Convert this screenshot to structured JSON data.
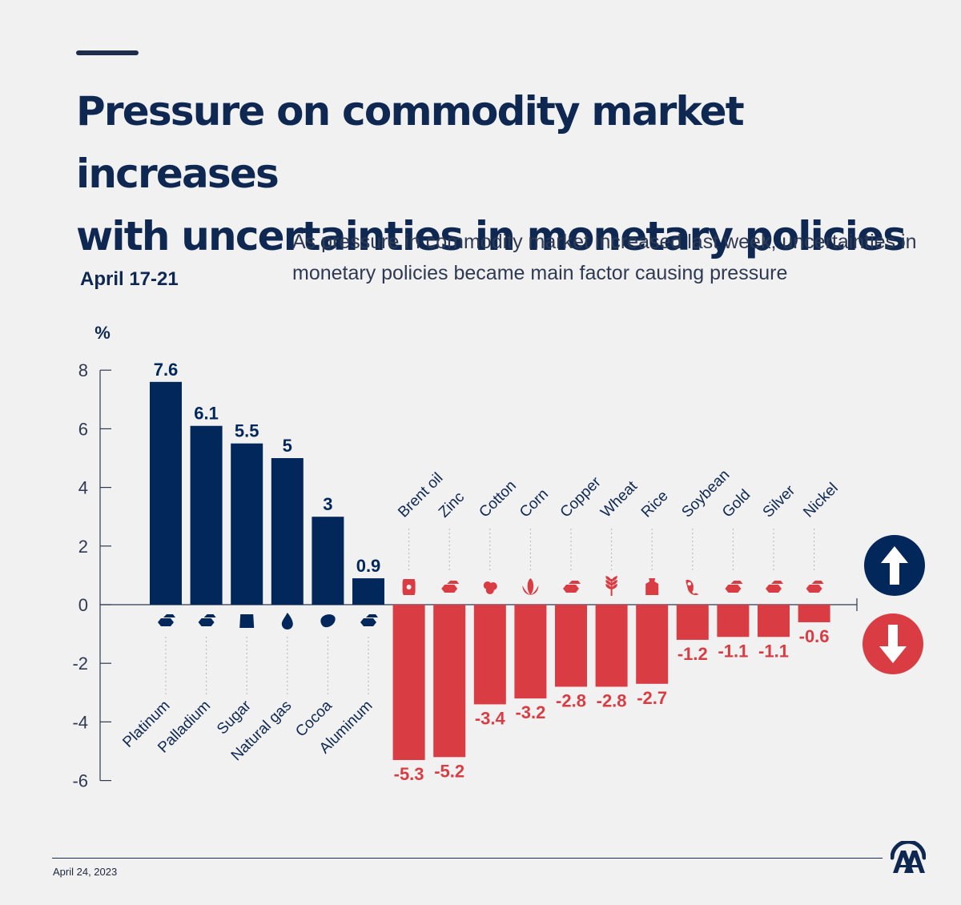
{
  "title_line1": "Pressure on commodity market increases",
  "title_line2": "with uncertainties in monetary policies",
  "subtitle": "As pressure in commodity market increased last week, uncertainties in monetary policies became main factor causing pressure",
  "period": "April 17-21",
  "footer_date": "April 24, 2023",
  "colors": {
    "positive": "#02275a",
    "negative": "#d93d43",
    "text_dark": "#0e2852",
    "axis": "#2f3a52",
    "background": "#f1f1f1"
  },
  "indicators": {
    "up_icon": "arrow-up-icon",
    "down_icon": "arrow-down-icon"
  },
  "chart_data": {
    "type": "bar",
    "title": "Pressure on commodity market increases with uncertainties in monetary policies",
    "subtitle": "April 17-21",
    "ylabel": "%",
    "xlabel": "",
    "ylim": [
      -6,
      8
    ],
    "yticks": [
      8,
      6,
      4,
      2,
      0,
      -2,
      -4,
      -6
    ],
    "grid": false,
    "legend": "none",
    "categories": [
      "Platinum",
      "Palladium",
      "Sugar",
      "Natural gas",
      "Cocoa",
      "Aluminum",
      "Brent oil",
      "Zinc",
      "Cotton",
      "Corn",
      "Copper",
      "Wheat",
      "Rice",
      "Soybean",
      "Gold",
      "Silver",
      "Nickel"
    ],
    "values": [
      7.6,
      6.1,
      5.5,
      5,
      3,
      0.9,
      -5.3,
      -5.2,
      -3.4,
      -3.2,
      -2.8,
      -2.8,
      -2.7,
      -1.2,
      -1.1,
      -1.1,
      -0.6
    ],
    "value_labels": [
      "7.6",
      "6.1",
      "5.5",
      "5",
      "3",
      "0.9",
      "-5.3",
      "-5.2",
      "-3.4",
      "-3.2",
      "-2.8",
      "-2.8",
      "-2.7",
      "-1.2",
      "-1.1",
      "-1.1",
      "-0.6"
    ],
    "icons": [
      "metal-bars-icon",
      "metal-bars-icon",
      "sugar-sack-icon",
      "gas-flame-icon",
      "cocoa-pod-icon",
      "metal-bars-icon",
      "oil-barrel-icon",
      "metal-bars-icon",
      "cotton-icon",
      "corn-icon",
      "metal-bars-icon",
      "wheat-icon",
      "rice-sack-icon",
      "soybean-icon",
      "metal-bars-icon",
      "metal-bars-icon",
      "metal-bars-icon"
    ]
  }
}
